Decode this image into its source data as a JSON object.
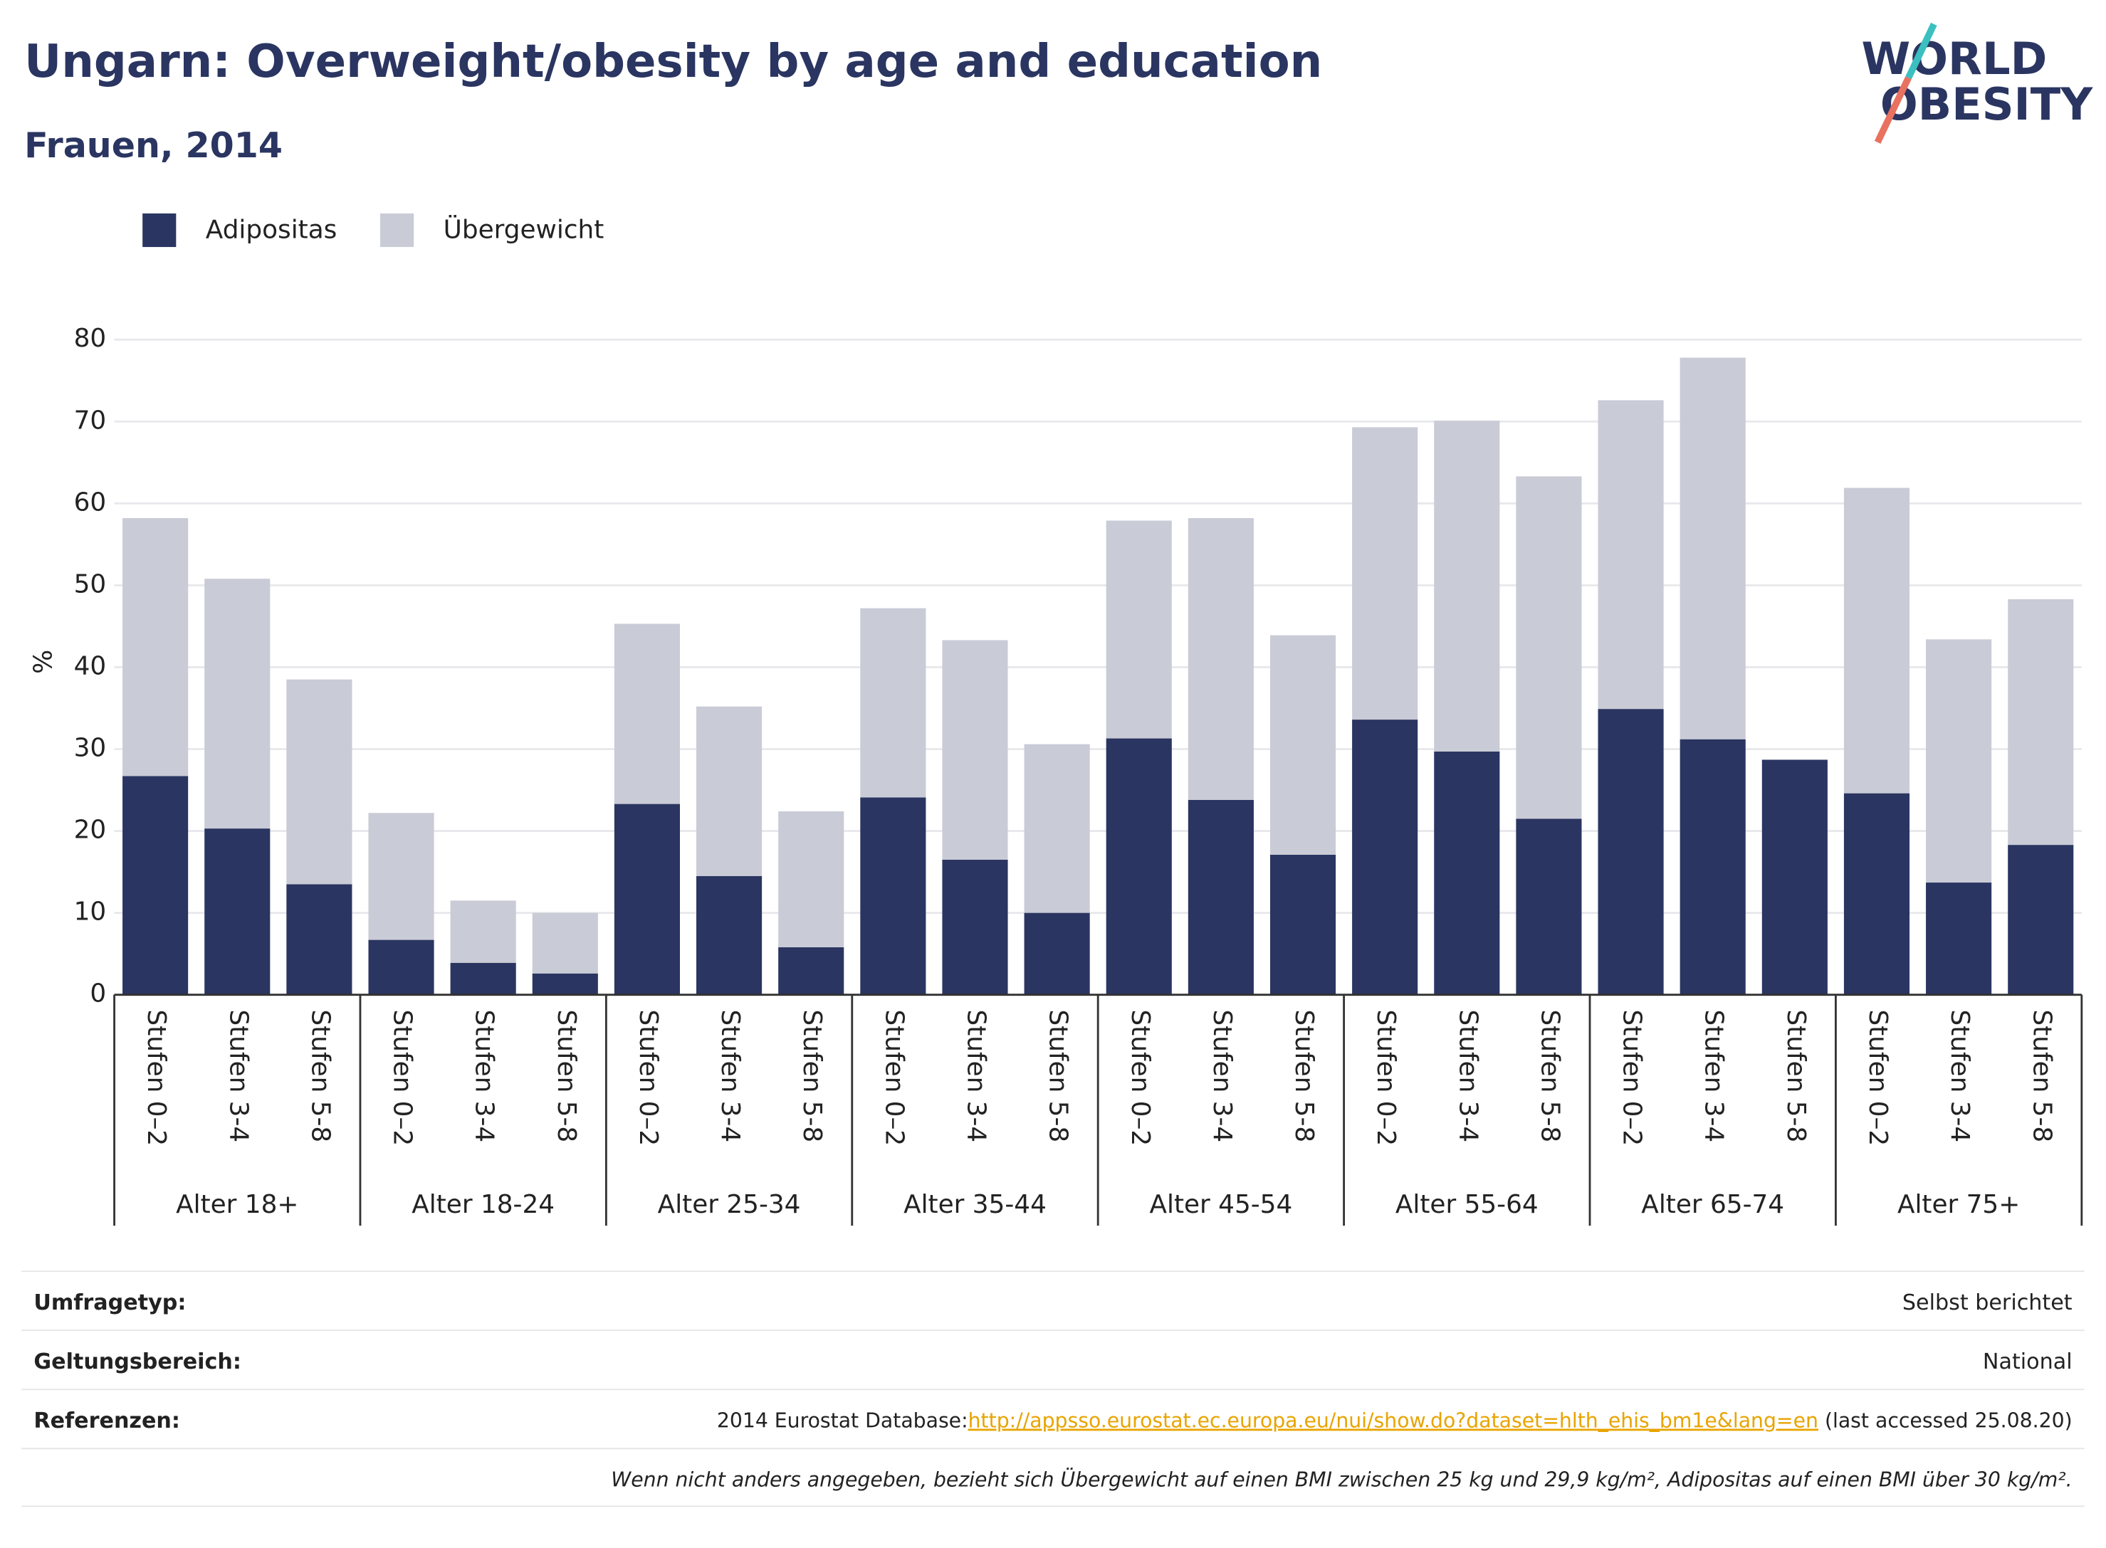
{
  "chart_data": {
    "type": "stacked_bar",
    "title": "Ungarn: Overweight/obesity by age and education",
    "subtitle": "Frauen, 2014",
    "y_label": "%",
    "categories": [
      "Stufen 0–2",
      "Stufen 3-4",
      "Stufen 5-8",
      "Stufen 0–2",
      "Stufen 3-4",
      "Stufen 5-8",
      "Stufen 0–2",
      "Stufen 3-4",
      "Stufen 5-8",
      "Stufen 0–2",
      "Stufen 3-4",
      "Stufen 5-8",
      "Stufen 0–2",
      "Stufen 3-4",
      "Stufen 5-8",
      "Stufen 0–2",
      "Stufen 3-4",
      "Stufen 5-8",
      "Stufen 0–2",
      "Stufen 3-4",
      "Stufen 5-8",
      "Stufen 0–2",
      "Stufen 3-4",
      "Stufen 5-8"
    ],
    "groups": [
      "Alter 18+",
      "Alter 18-24",
      "Alter 25-34",
      "Alter 35-44",
      "Alter 45-54",
      "Alter 55-64",
      "Alter 65-74",
      "Alter 75+"
    ],
    "series": [
      {
        "name": "Adipositas",
        "color": "#2a3561",
        "values": [
          26.7,
          20.3,
          13.5,
          6.7,
          3.9,
          2.6,
          23.3,
          14.5,
          5.8,
          24.1,
          16.5,
          10.0,
          31.3,
          23.8,
          17.1,
          33.6,
          29.7,
          21.5,
          34.9,
          31.2,
          28.7,
          24.6,
          13.7,
          18.3
        ]
      },
      {
        "name": "Übergewicht",
        "color": "#c9cbd6",
        "values": [
          31.5,
          30.5,
          25.0,
          15.5,
          7.6,
          7.4,
          22.0,
          20.7,
          16.6,
          23.1,
          26.8,
          20.6,
          26.6,
          34.4,
          26.8,
          35.7,
          40.4,
          41.8,
          37.7,
          46.6,
          null,
          37.3,
          29.7,
          30.0
        ]
      }
    ],
    "ylim": [
      0,
      80
    ],
    "yticks": [
      0,
      10,
      20,
      30,
      40,
      50,
      60,
      70,
      80
    ],
    "grid": true,
    "legend": "top-left"
  },
  "logo": {
    "line1": "WORLD",
    "line2": "OBESITY"
  },
  "footer": {
    "rows": [
      {
        "label": "Umfragetyp:",
        "value": "Selbst berichtet"
      },
      {
        "label": "Geltungsbereich:",
        "value": "National"
      }
    ],
    "references": {
      "label": "Referenzen:",
      "prefix": "2014 Eurostat Database:",
      "link": "http://appsso.eurostat.ec.europa.eu/nui/show.do?dataset=hlth_ehis_bm1e&lang=en",
      "suffix": " (last accessed 25.08.20)"
    },
    "note": "Wenn nicht anders angegeben, bezieht sich Übergewicht auf einen BMI zwischen 25 kg und 29,9 kg/m², Adipositas auf einen BMI über 30 kg/m²."
  }
}
